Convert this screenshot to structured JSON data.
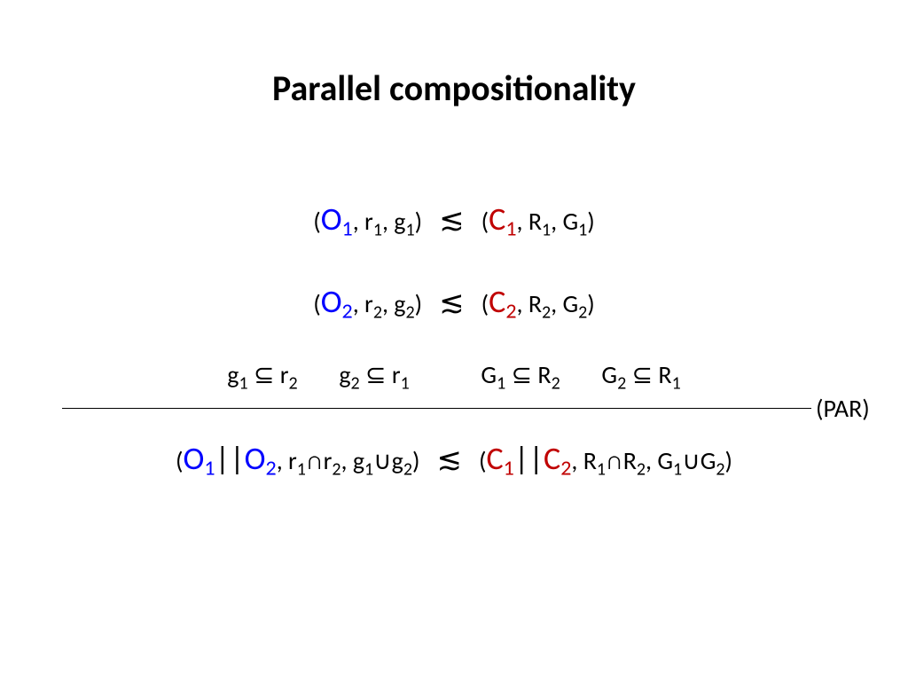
{
  "title": "Parallel compositionality",
  "colors": {
    "blue": "#0000ff",
    "red": "#c00000",
    "text": "#000000",
    "bg": "#ffffff"
  },
  "symbols": {
    "O": "O",
    "C": "C",
    "r": "r",
    "g": "g",
    "R": "R",
    "G": "G",
    "refines": "≲",
    "subset": "⊆",
    "cap": "∩",
    "cup": "∪",
    "par": "||",
    "lp": "(",
    "rp": ")",
    "comma": ", "
  },
  "sub": {
    "one": "1",
    "two": "2"
  },
  "rule_label": "(PAR)",
  "fontsize": {
    "title": 40,
    "body": 28,
    "big": 36,
    "sub": 20,
    "subbig": 24
  }
}
